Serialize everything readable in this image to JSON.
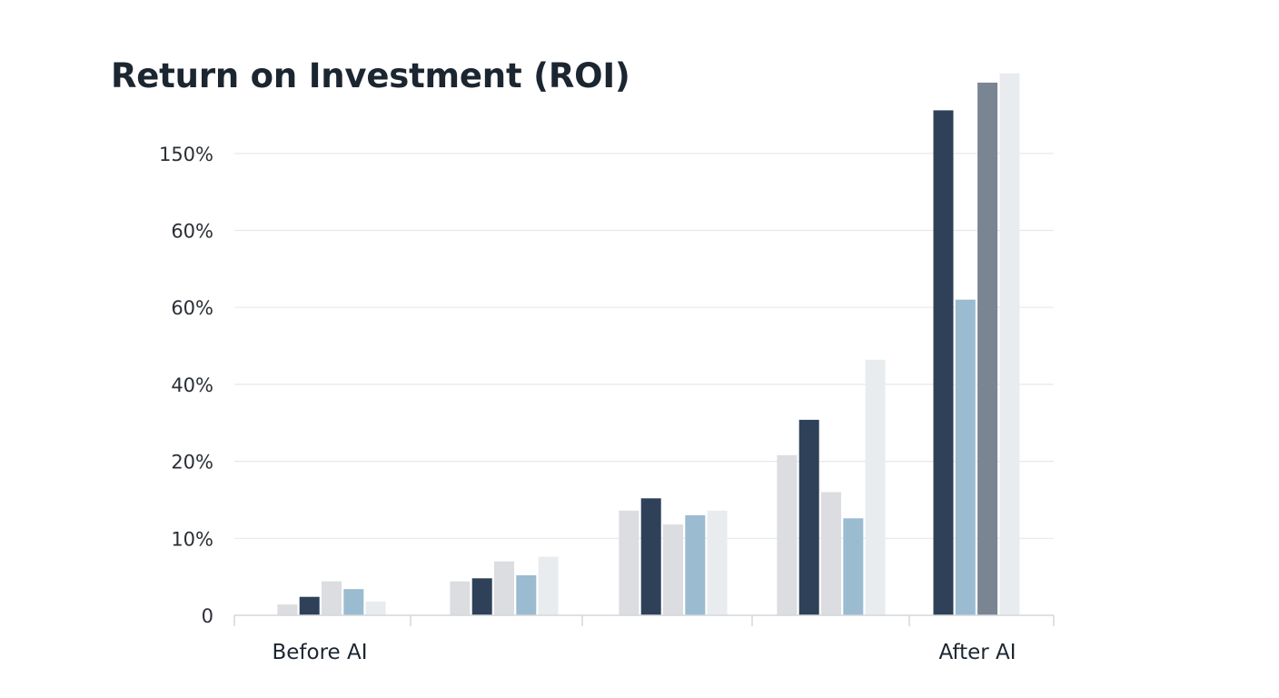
{
  "chart_data": {
    "type": "bar",
    "title": "Return on Investment (ROI)",
    "xlabel": "",
    "ylabel": "",
    "y_tick_labels": [
      "0",
      "10%",
      "20%",
      "40%",
      "60%",
      "60%",
      "150%"
    ],
    "categories": [
      "Before AI",
      "",
      "",
      "",
      "After AI"
    ],
    "grid": true,
    "legend": "none",
    "colors": [
      "#dcdde0",
      "#2e4159",
      "#dcdde0",
      "#9bbbd0",
      "#e8ecef"
    ],
    "groups": [
      {
        "label": "Before AI",
        "bars": [
          {
            "value": 0.7,
            "color": "#dcdde0"
          },
          {
            "value": 1.2,
            "color": "#2e4159"
          },
          {
            "value": 2.2,
            "color": "#dcdde0"
          },
          {
            "value": 1.7,
            "color": "#9bbbd0"
          },
          {
            "value": 0.9,
            "color": "#e8ecef"
          }
        ]
      },
      {
        "label": "",
        "bars": [
          {
            "value": 2.2,
            "color": "#dcdde0"
          },
          {
            "value": 2.4,
            "color": "#2e4159"
          },
          {
            "value": 3.5,
            "color": "#dcdde0"
          },
          {
            "value": 2.6,
            "color": "#9bbbd0"
          },
          {
            "value": 3.8,
            "color": "#e8ecef"
          }
        ]
      },
      {
        "label": "",
        "bars": [
          {
            "value": 6.8,
            "color": "#dcdde0"
          },
          {
            "value": 7.6,
            "color": "#2e4159"
          },
          {
            "value": 5.9,
            "color": "#dcdde0"
          },
          {
            "value": 6.5,
            "color": "#9bbbd0"
          },
          {
            "value": 6.8,
            "color": "#e8ecef"
          }
        ]
      },
      {
        "label": "",
        "bars": [
          {
            "value": 10.4,
            "color": "#dcdde0"
          },
          {
            "value": 12.7,
            "color": "#2e4159"
          },
          {
            "value": 8.0,
            "color": "#dcdde0"
          },
          {
            "value": 6.3,
            "color": "#9bbbd0"
          },
          {
            "value": 16.6,
            "color": "#e8ecef"
          }
        ]
      },
      {
        "label": "After AI",
        "bars": [
          {
            "value": 32.8,
            "color": "#2e4159"
          },
          {
            "value": 20.5,
            "color": "#9bbbd0"
          },
          {
            "value": 34.6,
            "color": "#7a8594"
          },
          {
            "value": 35.2,
            "color": "#e8ecef"
          }
        ]
      }
    ]
  }
}
